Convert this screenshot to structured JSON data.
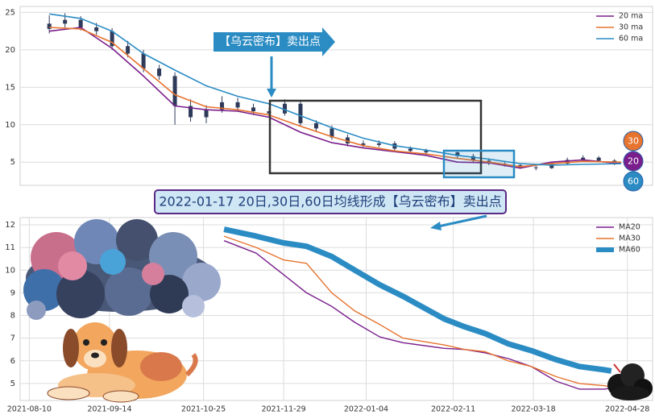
{
  "chart_data": [
    {
      "type": "candlestick",
      "x": [
        "2021-08-10",
        "2021-08-17",
        "2021-08-24",
        "2021-08-31",
        "2021-09-07",
        "2021-09-14",
        "2021-09-21",
        "2021-09-28",
        "2021-10-05",
        "2021-10-12",
        "2021-10-19",
        "2021-10-26",
        "2021-11-02",
        "2021-11-09",
        "2021-11-16",
        "2021-11-23",
        "2021-11-30",
        "2021-12-07",
        "2021-12-14",
        "2021-12-21",
        "2021-12-28",
        "2022-01-04",
        "2022-01-11",
        "2022-01-18",
        "2022-01-25",
        "2022-02-08",
        "2022-02-15",
        "2022-02-22",
        "2022-03-01",
        "2022-03-08",
        "2022-03-15",
        "2022-03-22",
        "2022-03-29",
        "2022-04-05",
        "2022-04-12",
        "2022-04-19"
      ],
      "open": [
        22.8,
        23.5,
        24.0,
        23.0,
        22.5,
        20.5,
        19.5,
        17.5,
        16.5,
        12.5,
        11.0,
        12.0,
        13.0,
        12.3,
        11.8,
        11.5,
        12.8,
        10.2,
        9.5,
        8.3,
        7.5,
        7.3,
        7.5,
        6.8,
        6.5,
        6.3,
        5.8,
        5.2,
        4.8,
        4.6,
        4.3,
        4.2,
        4.8,
        5.3,
        5.6,
        5.2
      ],
      "high": [
        24.6,
        24.9,
        24.5,
        23.6,
        22.9,
        21.2,
        20.0,
        18.0,
        17.0,
        13.4,
        12.6,
        13.8,
        13.6,
        12.8,
        12.3,
        13.4,
        13.2,
        10.6,
        9.9,
        8.7,
        7.9,
        7.9,
        7.8,
        7.1,
        6.8,
        6.6,
        6.1,
        5.5,
        5.0,
        4.8,
        4.5,
        5.0,
        5.6,
        5.9,
        5.8,
        5.4
      ],
      "low": [
        22.2,
        23.0,
        22.6,
        22.0,
        20.0,
        19.0,
        17.0,
        16.0,
        10.0,
        10.4,
        10.2,
        11.6,
        11.8,
        11.3,
        11.0,
        11.2,
        9.8,
        9.0,
        8.0,
        7.1,
        7.0,
        7.0,
        6.5,
        6.2,
        6.0,
        5.5,
        5.0,
        4.6,
        4.4,
        4.1,
        3.9,
        4.1,
        4.7,
        5.1,
        5.0,
        4.6
      ],
      "close": [
        23.5,
        24.0,
        23.0,
        22.5,
        20.5,
        19.5,
        17.5,
        16.5,
        12.5,
        11.0,
        12.0,
        13.0,
        12.3,
        11.8,
        11.5,
        12.8,
        10.2,
        9.5,
        8.3,
        7.5,
        7.3,
        7.5,
        6.8,
        6.5,
        6.3,
        5.8,
        5.2,
        4.8,
        4.6,
        4.3,
        4.2,
        4.8,
        5.3,
        5.6,
        5.2,
        4.9
      ],
      "candle_color": "#2e3a59",
      "series": [
        {
          "name": "20 ma",
          "color": "#7a1e8c",
          "linewidth": 1.6,
          "x": [
            "2021-08-10",
            "2021-08-24",
            "2021-09-07",
            "2021-09-21",
            "2021-10-05",
            "2021-10-19",
            "2021-11-02",
            "2021-11-16",
            "2021-11-30",
            "2021-12-14",
            "2021-12-28",
            "2022-01-11",
            "2022-01-25",
            "2022-02-08",
            "2022-02-22",
            "2022-03-08",
            "2022-03-22",
            "2022-04-05",
            "2022-04-22"
          ],
          "values": [
            22.5,
            23.0,
            20.2,
            16.5,
            12.5,
            12.0,
            11.8,
            11.0,
            9.0,
            7.6,
            6.9,
            6.4,
            5.9,
            5.0,
            4.9,
            4.2,
            5.0,
            5.3,
            4.8
          ]
        },
        {
          "name": "30 ma",
          "color": "#e6732e",
          "linewidth": 1.6,
          "x": [
            "2021-08-10",
            "2021-08-24",
            "2021-09-07",
            "2021-09-21",
            "2021-10-05",
            "2021-10-19",
            "2021-11-02",
            "2021-11-16",
            "2021-11-30",
            "2021-12-14",
            "2021-12-28",
            "2022-01-11",
            "2022-01-25",
            "2022-02-08",
            "2022-02-22",
            "2022-03-08",
            "2022-03-22",
            "2022-04-05",
            "2022-04-22"
          ],
          "values": [
            23.0,
            22.8,
            21.0,
            17.5,
            14.0,
            12.4,
            12.0,
            11.3,
            9.8,
            8.4,
            7.2,
            6.5,
            6.1,
            5.5,
            5.0,
            4.4,
            4.8,
            5.1,
            5.0
          ]
        },
        {
          "name": "60 ma",
          "color": "#2b8cc4",
          "linewidth": 1.6,
          "x": [
            "2021-08-10",
            "2021-08-24",
            "2021-09-07",
            "2021-09-21",
            "2021-10-05",
            "2021-10-19",
            "2021-11-02",
            "2021-11-16",
            "2021-11-30",
            "2021-12-14",
            "2021-12-28",
            "2022-01-11",
            "2022-01-25",
            "2022-02-08",
            "2022-02-22",
            "2022-03-08",
            "2022-03-22",
            "2022-04-05",
            "2022-04-22"
          ],
          "values": [
            24.8,
            24.2,
            22.5,
            19.5,
            17.3,
            15.2,
            13.8,
            12.8,
            11.2,
            9.6,
            8.2,
            7.2,
            6.6,
            5.9,
            5.4,
            4.8,
            4.6,
            4.7,
            4.8
          ]
        }
      ],
      "end_labels": [
        {
          "text": "30",
          "color": "#e6732e"
        },
        {
          "text": "20",
          "color": "#7a1e8c"
        },
        {
          "text": "60",
          "color": "#2b8cc4"
        }
      ],
      "xlim": [
        "2021-07-28",
        "2022-05-06"
      ],
      "ylim": [
        1.9,
        25.8
      ],
      "yticks": [
        5,
        10,
        15,
        20,
        25
      ],
      "grid": true,
      "legend": "upper right"
    },
    {
      "type": "line",
      "series": [
        {
          "name": "MA20",
          "color": "#7a1e8c",
          "linewidth": 1.4,
          "x": [
            "2021-11-03",
            "2021-11-17",
            "2021-11-29",
            "2021-12-09",
            "2021-12-20",
            "2021-12-30",
            "2022-01-10",
            "2022-01-20",
            "2022-02-07",
            "2022-02-16",
            "2022-02-25",
            "2022-03-07",
            "2022-03-17",
            "2022-03-28",
            "2022-04-07",
            "2022-04-18",
            "2022-04-21"
          ],
          "values": [
            11.3,
            10.75,
            9.8,
            9.0,
            8.4,
            7.7,
            7.05,
            6.8,
            6.55,
            6.5,
            6.35,
            6.1,
            5.75,
            5.1,
            4.75,
            4.75,
            4.8
          ]
        },
        {
          "name": "MA30",
          "color": "#e6732e",
          "linewidth": 1.4,
          "x": [
            "2021-11-03",
            "2021-11-17",
            "2021-11-29",
            "2021-12-09",
            "2021-12-20",
            "2021-12-30",
            "2022-01-10",
            "2022-01-20",
            "2022-02-07",
            "2022-02-16",
            "2022-02-25",
            "2022-03-07",
            "2022-03-17",
            "2022-03-28",
            "2022-04-07",
            "2022-04-18",
            "2022-04-21"
          ],
          "values": [
            11.5,
            11.0,
            10.45,
            10.3,
            9.0,
            8.2,
            7.6,
            7.0,
            6.7,
            6.5,
            6.4,
            6.0,
            5.75,
            5.3,
            5.0,
            4.9,
            4.85
          ]
        },
        {
          "name": "MA60",
          "color": "#2b8cc4",
          "linewidth": 7,
          "x": [
            "2021-11-03",
            "2021-11-17",
            "2021-11-29",
            "2021-12-09",
            "2021-12-20",
            "2021-12-30",
            "2022-01-10",
            "2022-01-20",
            "2022-02-07",
            "2022-02-16",
            "2022-02-25",
            "2022-03-07",
            "2022-03-17",
            "2022-03-28",
            "2022-04-07",
            "2022-04-18",
            "2022-04-21"
          ],
          "values": [
            11.8,
            11.5,
            11.2,
            11.05,
            10.6,
            10.0,
            9.35,
            8.85,
            7.85,
            7.5,
            7.2,
            6.75,
            6.45,
            6.05,
            5.75,
            5.6,
            5.55
          ]
        }
      ],
      "xlim": [
        "2021-08-06",
        "2022-05-09"
      ],
      "xticks": [
        "2021-08-10",
        "2021-09-14",
        "2021-10-25",
        "2021-11-29",
        "2022-01-04",
        "2022-02-11",
        "2022-03-18",
        "2022-04-28"
      ],
      "ylim": [
        4.25,
        12.32
      ],
      "yticks": [
        5,
        6,
        7,
        8,
        9,
        10,
        11,
        12
      ],
      "grid": true,
      "legend": "upper right"
    }
  ],
  "annotations": {
    "callout": "【乌云密布】卖出点",
    "banner": "2022-01-17 20日,30日,60日均线形成【乌云密布】卖出点"
  }
}
